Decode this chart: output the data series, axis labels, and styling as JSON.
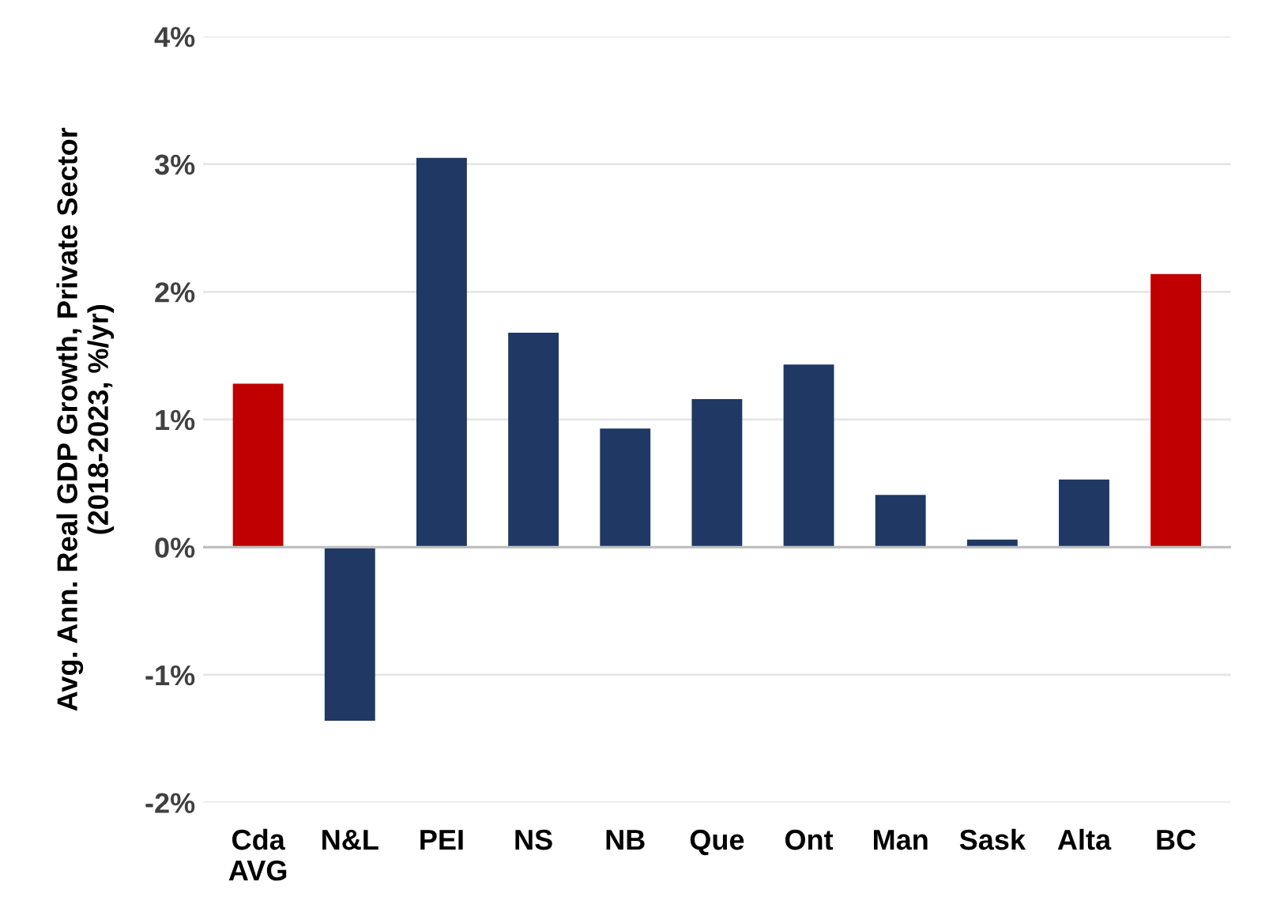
{
  "chart_data": {
    "type": "bar",
    "ylabel": "Avg. Ann. Real GDP Growth, Private Sector\n(2018-2023, %/yr)",
    "categories": [
      "Cda\nAVG",
      "N&L",
      "PEI",
      "NS",
      "NB",
      "Que",
      "Ont",
      "Man",
      "Sask",
      "Alta",
      "BC"
    ],
    "values": [
      1.28,
      -1.36,
      3.05,
      1.68,
      0.93,
      1.16,
      1.43,
      0.41,
      0.06,
      0.53,
      2.14
    ],
    "colors": [
      "#c00000",
      "#1f3864",
      "#1f3864",
      "#1f3864",
      "#1f3864",
      "#1f3864",
      "#1f3864",
      "#1f3864",
      "#1f3864",
      "#1f3864",
      "#c00000"
    ],
    "ylim": [
      -2,
      4
    ],
    "yticks": [
      {
        "value": -2,
        "label": "-2%"
      },
      {
        "value": -1,
        "label": "-1%"
      },
      {
        "value": 0,
        "label": "0%"
      },
      {
        "value": 1,
        "label": "1%"
      },
      {
        "value": 2,
        "label": "2%"
      },
      {
        "value": 3,
        "label": "3%"
      },
      {
        "value": 4,
        "label": "4%"
      }
    ],
    "grid": "y"
  }
}
